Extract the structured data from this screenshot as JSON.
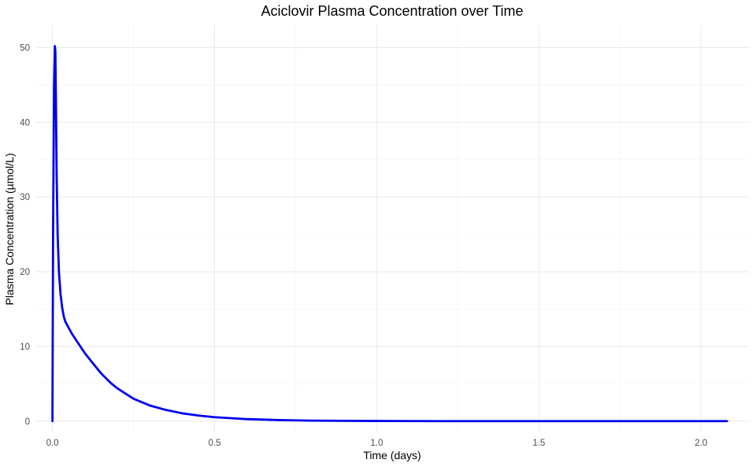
{
  "chart_data": {
    "type": "line",
    "title": "Aciclovir Plasma Concentration over Time",
    "xlabel": "Time (days)",
    "ylabel": "Plasma Concentration (µmol/L)",
    "xlim": [
      -0.05,
      2.15
    ],
    "ylim": [
      -1.5,
      53
    ],
    "x_ticks": [
      0.0,
      0.5,
      1.0,
      1.5,
      2.0
    ],
    "x_tick_labels": [
      "0.0",
      "0.5",
      "1.0",
      "1.5",
      "2.0"
    ],
    "y_ticks": [
      0,
      10,
      20,
      30,
      40,
      50
    ],
    "y_tick_labels": [
      "0",
      "10",
      "20",
      "30",
      "40",
      "50"
    ],
    "x_minor_ticks": [
      0.25,
      0.75,
      1.25,
      1.75
    ],
    "y_minor_ticks": [
      5,
      15,
      25,
      35,
      45
    ],
    "grid": true,
    "series": [
      {
        "color": "#0000ee",
        "points": [
          [
            0.0,
            0.0
          ],
          [
            0.002,
            25.0
          ],
          [
            0.005,
            45.0
          ],
          [
            0.0075,
            50.2
          ],
          [
            0.009,
            49.5
          ],
          [
            0.011,
            42.0
          ],
          [
            0.013,
            33.0
          ],
          [
            0.016,
            25.0
          ],
          [
            0.02,
            20.0
          ],
          [
            0.025,
            17.0
          ],
          [
            0.03,
            15.2
          ],
          [
            0.035,
            14.0
          ],
          [
            0.04,
            13.3
          ],
          [
            0.05,
            12.5
          ],
          [
            0.06,
            11.7
          ],
          [
            0.08,
            10.4
          ],
          [
            0.1,
            9.1
          ],
          [
            0.12,
            8.0
          ],
          [
            0.15,
            6.4
          ],
          [
            0.18,
            5.1
          ],
          [
            0.2,
            4.4
          ],
          [
            0.25,
            3.0
          ],
          [
            0.3,
            2.1
          ],
          [
            0.35,
            1.5
          ],
          [
            0.4,
            1.05
          ],
          [
            0.45,
            0.75
          ],
          [
            0.5,
            0.53
          ],
          [
            0.6,
            0.27
          ],
          [
            0.7,
            0.14
          ],
          [
            0.8,
            0.07
          ],
          [
            0.9,
            0.04
          ],
          [
            1.0,
            0.02
          ],
          [
            1.2,
            0.005
          ],
          [
            1.5,
            0.0
          ],
          [
            1.8,
            0.0
          ],
          [
            2.08,
            0.0
          ]
        ]
      }
    ]
  }
}
